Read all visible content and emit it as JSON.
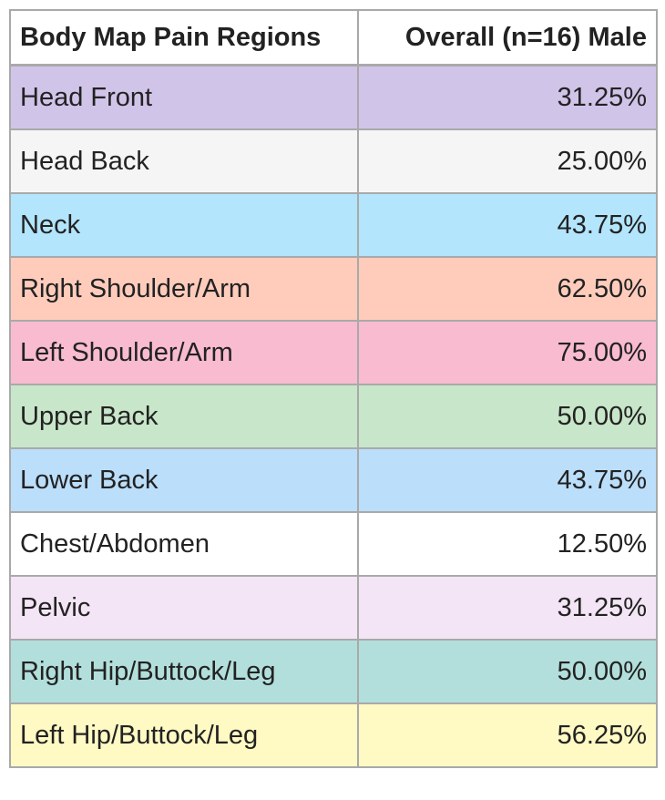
{
  "table": {
    "headers": [
      "Body Map Pain Regions",
      "Overall (n=16) Male"
    ],
    "rows": [
      {
        "region": "Head Front",
        "value": "31.25%",
        "color": "#d1c4e9"
      },
      {
        "region": "Head Back",
        "value": "25.00%",
        "color": "#f5f5f5"
      },
      {
        "region": "Neck",
        "value": "43.75%",
        "color": "#b3e5fc"
      },
      {
        "region": "Right Shoulder/Arm",
        "value": "62.50%",
        "color": "#ffccbc"
      },
      {
        "region": "Left Shoulder/Arm",
        "value": "75.00%",
        "color": "#f8bbd0"
      },
      {
        "region": "Upper Back",
        "value": "50.00%",
        "color": "#c8e6c9"
      },
      {
        "region": "Lower Back",
        "value": "43.75%",
        "color": "#bbdefb"
      },
      {
        "region": "Chest/Abdomen",
        "value": "12.50%",
        "color": "#ffffff"
      },
      {
        "region": "Pelvic",
        "value": "31.25%",
        "color": "#f3e5f5"
      },
      {
        "region": "Right Hip/Buttock/Leg",
        "value": "50.00%",
        "color": "#b2dfdb"
      },
      {
        "region": "Left Hip/Buttock/Leg",
        "value": "56.25%",
        "color": "#fff9c4"
      }
    ]
  }
}
